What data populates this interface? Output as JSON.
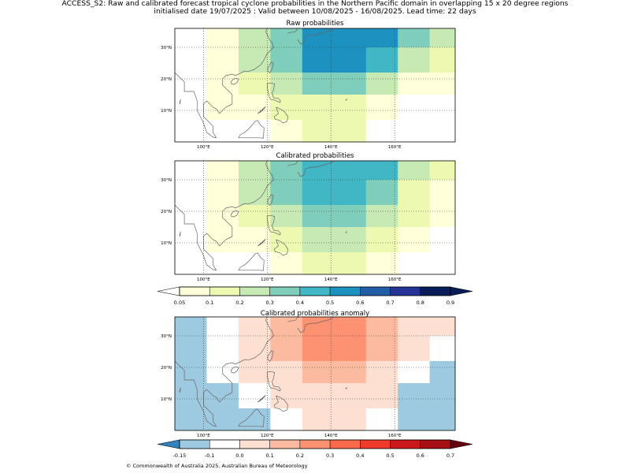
{
  "header": {
    "title_line1": "ACCESS_S2: Raw and calibrated forecast tropical cyclone probabilities in the Northern Pacific domain in overlapping 15 x 20 degree regions",
    "title_line2": "initialised date 19/07/2025 :  Valid between 10/08/2025 - 16/08/2025. Lead time: 22 days"
  },
  "footer": {
    "copyright": "© Commonwealth of Australia 2025, Australian Bureau of Meteorology"
  },
  "chart_data": [
    {
      "type": "heatmap",
      "title": "Raw probabilities",
      "x_ticks": [
        "100°E",
        "120°E",
        "140°E",
        "160°E"
      ],
      "x_tick_values": [
        100,
        120,
        140,
        160
      ],
      "y_ticks": [
        "10°N",
        "20°N",
        "30°N"
      ],
      "y_tick_values": [
        10,
        20,
        30
      ],
      "lon_range": [
        91,
        179
      ],
      "lat_range": [
        0,
        36
      ],
      "lon_edges": [
        91,
        101,
        111,
        121,
        131,
        141,
        151,
        161,
        171,
        179
      ],
      "lat_edges": [
        0,
        7,
        15,
        22,
        30,
        36
      ],
      "rows_north_to_south": [
        [
          0,
          0.05,
          0.2,
          0.3,
          0.5,
          0.5,
          0.5,
          0.3,
          0.2
        ],
        [
          0,
          0.05,
          0.2,
          0.3,
          0.5,
          0.5,
          0.4,
          0.2,
          0.1
        ],
        [
          0,
          0.05,
          0.1,
          0.2,
          0.3,
          0.3,
          0.2,
          0.05,
          0.05
        ],
        [
          0,
          0.05,
          0.05,
          0.1,
          0.1,
          0.1,
          0.05,
          0,
          0
        ],
        [
          0,
          0,
          0,
          0.05,
          0.1,
          0.1,
          0,
          0,
          0
        ]
      ],
      "grid": true
    },
    {
      "type": "heatmap",
      "title": "Calibrated probabilities",
      "x_ticks": [
        "100°E",
        "120°E",
        "140°E",
        "160°E"
      ],
      "x_tick_values": [
        100,
        120,
        140,
        160
      ],
      "y_ticks": [
        "10°N",
        "20°N",
        "30°N"
      ],
      "y_tick_values": [
        10,
        20,
        30
      ],
      "lon_range": [
        91,
        179
      ],
      "lat_range": [
        0,
        36
      ],
      "lon_edges": [
        91,
        101,
        111,
        121,
        131,
        141,
        151,
        161,
        171,
        179
      ],
      "lat_edges": [
        0,
        7,
        15,
        22,
        30,
        36
      ],
      "rows_north_to_south": [
        [
          0,
          0.05,
          0.2,
          0.3,
          0.4,
          0.4,
          0.4,
          0.2,
          0.1
        ],
        [
          0,
          0.05,
          0.2,
          0.3,
          0.4,
          0.4,
          0.3,
          0.1,
          0.05
        ],
        [
          0,
          0.05,
          0.1,
          0.2,
          0.3,
          0.3,
          0.2,
          0.1,
          0.05
        ],
        [
          0,
          0.05,
          0.05,
          0.1,
          0.2,
          0.2,
          0.1,
          0.05,
          0
        ],
        [
          0,
          0,
          0,
          0.05,
          0.1,
          0.1,
          0.05,
          0,
          0
        ]
      ],
      "grid": true
    },
    {
      "type": "heatmap",
      "title": "Calibrated probabilities anomaly",
      "x_ticks": [
        "100°E",
        "120°E",
        "140°E",
        "160°E"
      ],
      "x_tick_values": [
        100,
        120,
        140,
        160
      ],
      "y_ticks": [
        "10°N",
        "20°N",
        "30°N"
      ],
      "y_tick_values": [
        10,
        20,
        30
      ],
      "lon_range": [
        91,
        179
      ],
      "lat_range": [
        0,
        36
      ],
      "lon_edges": [
        91,
        101,
        111,
        121,
        131,
        141,
        151,
        161,
        171,
        179
      ],
      "lat_edges": [
        0,
        7,
        15,
        22,
        30,
        36
      ],
      "rows_north_to_south": [
        [
          -0.15,
          -0.1,
          0.0,
          0.1,
          0.2,
          0.2,
          0.1,
          0.0,
          0.0
        ],
        [
          -0.15,
          -0.1,
          0.0,
          0.1,
          0.2,
          0.2,
          0.1,
          0.0,
          -0.1
        ],
        [
          -0.15,
          -0.1,
          0.0,
          0.0,
          0.1,
          0.1,
          0.0,
          -0.1,
          -0.15
        ],
        [
          -0.15,
          -0.15,
          -0.1,
          0.0,
          0.0,
          0.0,
          0.0,
          -0.15,
          -0.15
        ],
        [
          -0.15,
          -0.15,
          -0.15,
          -0.1,
          0.0,
          0.0,
          -0.1,
          -0.15,
          -0.15
        ]
      ],
      "grid": true
    }
  ],
  "colorbars": [
    {
      "labels": [
        "0.05",
        "0.1",
        "0.2",
        "0.3",
        "0.4",
        "0.5",
        "0.6",
        "0.7",
        "0.8",
        "0.9"
      ],
      "colors": [
        "#ffffd9",
        "#edf8b1",
        "#c7e9b4",
        "#7fcdbb",
        "#41b6c4",
        "#1d91c0",
        "#225ea8",
        "#253494",
        "#081d58"
      ],
      "under_color": "#ffffff",
      "over_color": "#081d58"
    },
    {
      "labels": [
        "-0.15",
        "-0.1",
        "0.0",
        "0.1",
        "0.2",
        "0.3",
        "0.4",
        "0.5",
        "0.6",
        "0.7"
      ],
      "colors": [
        "#9ecae1",
        "#ffffff",
        "#fee0d2",
        "#fcbba1",
        "#fc9272",
        "#fb6a4a",
        "#ef3b2c",
        "#cb181d",
        "#a50f15"
      ],
      "under_color": "#3182bd",
      "over_color": "#67000d"
    }
  ]
}
